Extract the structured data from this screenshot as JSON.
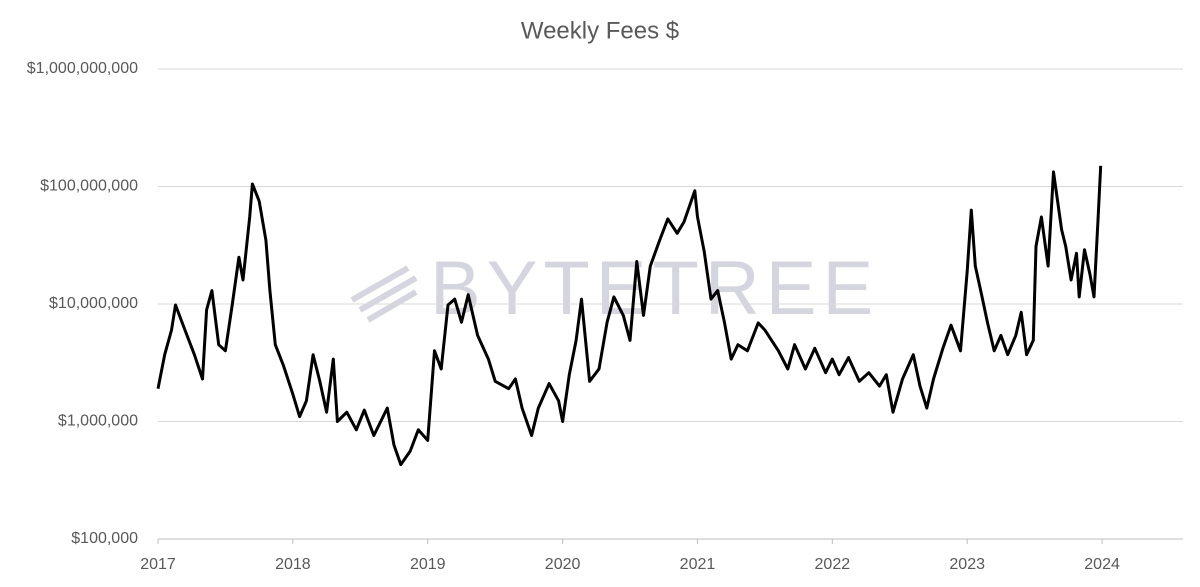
{
  "chart_data": {
    "type": "line",
    "title": "Weekly Fees $",
    "watermark": "BYTETREE",
    "log_scale": true,
    "grid": true,
    "color": "#000000",
    "xlim": [
      2017,
      2024.6
    ],
    "xticks": [
      2017,
      2018,
      2019,
      2020,
      2021,
      2022,
      2023,
      2024
    ],
    "ylim": [
      100000,
      1000000000
    ],
    "yticks": [
      {
        "value": 100000,
        "label": "$100,000"
      },
      {
        "value": 1000000,
        "label": "$1,000,000"
      },
      {
        "value": 10000000,
        "label": "$10,000,000"
      },
      {
        "value": 100000000,
        "label": "$100,000,000"
      },
      {
        "value": 1000000000,
        "label": "$1,000,000,000"
      }
    ],
    "x": [
      2017.0,
      2017.05,
      2017.1,
      2017.13,
      2017.2,
      2017.27,
      2017.33,
      2017.36,
      2017.4,
      2017.45,
      2017.5,
      2017.55,
      2017.6,
      2017.63,
      2017.68,
      2017.7,
      2017.75,
      2017.8,
      2017.83,
      2017.87,
      2017.93,
      2018.0,
      2018.05,
      2018.1,
      2018.15,
      2018.2,
      2018.25,
      2018.3,
      2018.33,
      2018.4,
      2018.47,
      2018.53,
      2018.6,
      2018.7,
      2018.75,
      2018.8,
      2018.87,
      2018.93,
      2019.0,
      2019.05,
      2019.1,
      2019.15,
      2019.2,
      2019.25,
      2019.3,
      2019.37,
      2019.45,
      2019.5,
      2019.6,
      2019.65,
      2019.7,
      2019.77,
      2019.82,
      2019.9,
      2019.97,
      2020.0,
      2020.05,
      2020.1,
      2020.14,
      2020.2,
      2020.27,
      2020.33,
      2020.38,
      2020.45,
      2020.5,
      2020.55,
      2020.6,
      2020.65,
      2020.72,
      2020.78,
      2020.85,
      2020.9,
      2020.98,
      2021.0,
      2021.05,
      2021.1,
      2021.15,
      2021.2,
      2021.25,
      2021.3,
      2021.37,
      2021.45,
      2021.5,
      2021.6,
      2021.67,
      2021.72,
      2021.8,
      2021.87,
      2021.95,
      2022.0,
      2022.05,
      2022.12,
      2022.2,
      2022.27,
      2022.35,
      2022.4,
      2022.45,
      2022.52,
      2022.6,
      2022.65,
      2022.7,
      2022.75,
      2022.82,
      2022.88,
      2022.95,
      2023.0,
      2023.03,
      2023.06,
      2023.1,
      2023.15,
      2023.2,
      2023.25,
      2023.3,
      2023.36,
      2023.4,
      2023.44,
      2023.49,
      2023.51,
      2023.55,
      2023.6,
      2023.64,
      2023.7,
      2023.73,
      2023.77,
      2023.81,
      2023.83,
      2023.87,
      2023.91,
      2023.94,
      2023.97,
      2023.99
    ],
    "series": [
      {
        "name": "Weekly Fees",
        "color": "#000000",
        "values": [
          1900000,
          3700000,
          6000000,
          9800000,
          6000000,
          3700000,
          2300000,
          8900000,
          13000000,
          4500000,
          4000000,
          9800000,
          25000000,
          16000000,
          55000000,
          105000000,
          75000000,
          35000000,
          13000000,
          4500000,
          3000000,
          1700000,
          1100000,
          1500000,
          3700000,
          2200000,
          1200000,
          3400000,
          1000000,
          1200000,
          850000,
          1250000,
          760000,
          1300000,
          630000,
          430000,
          560000,
          850000,
          690000,
          4000000,
          2800000,
          9800000,
          11000000,
          7000000,
          12000000,
          5400000,
          3400000,
          2200000,
          1900000,
          2300000,
          1300000,
          760000,
          1300000,
          2100000,
          1500000,
          1000000,
          2500000,
          4900000,
          11000000,
          2200000,
          2800000,
          7000000,
          11500000,
          8000000,
          4900000,
          23000000,
          8000000,
          21000000,
          35000000,
          53000000,
          40000000,
          50000000,
          92000000,
          55000000,
          28000000,
          11000000,
          13000000,
          7000000,
          3400000,
          4500000,
          4000000,
          6900000,
          6000000,
          4000000,
          2800000,
          4500000,
          2800000,
          4200000,
          2600000,
          3400000,
          2500000,
          3500000,
          2200000,
          2600000,
          2000000,
          2500000,
          1200000,
          2300000,
          3700000,
          2000000,
          1300000,
          2300000,
          4200000,
          6600000,
          4000000,
          19000000,
          63000000,
          21000000,
          13000000,
          7000000,
          4000000,
          5400000,
          3700000,
          5400000,
          8500000,
          3700000,
          4900000,
          31000000,
          55000000,
          21000000,
          133000000,
          43000000,
          31000000,
          16000000,
          27000000,
          11500000,
          29000000,
          18000000,
          11500000,
          52000000,
          150000000
        ]
      }
    ]
  }
}
